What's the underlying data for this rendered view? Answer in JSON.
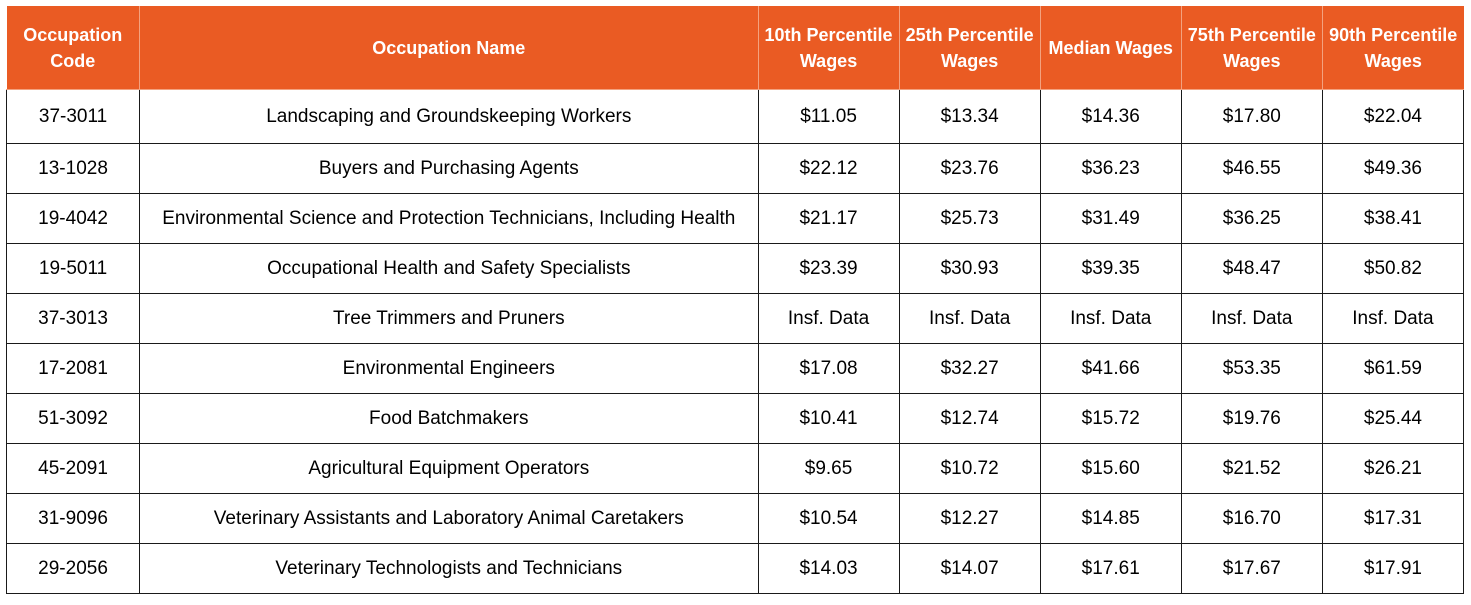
{
  "table": {
    "headers": [
      "Occupation Code",
      "Occupation Name",
      "10th Percentile Wages",
      "25th Percentile Wages",
      "Median Wages",
      "75th Percentile Wages",
      "90th Percentile Wages"
    ],
    "rows": [
      [
        "37-3011",
        "Landscaping and Groundskeeping Workers",
        "$11.05",
        "$13.34",
        "$14.36",
        "$17.80",
        "$22.04"
      ],
      [
        "13-1028",
        "Buyers and Purchasing Agents",
        "$22.12",
        "$23.76",
        "$36.23",
        "$46.55",
        "$49.36"
      ],
      [
        "19-4042",
        "Environmental Science and Protection Technicians, Including Health",
        "$21.17",
        "$25.73",
        "$31.49",
        "$36.25",
        "$38.41"
      ],
      [
        "19-5011",
        "Occupational Health and Safety Specialists",
        "$23.39",
        "$30.93",
        "$39.35",
        "$48.47",
        "$50.82"
      ],
      [
        "37-3013",
        "Tree Trimmers and Pruners",
        "Insf. Data",
        "Insf. Data",
        "Insf. Data",
        "Insf. Data",
        "Insf. Data"
      ],
      [
        "17-2081",
        "Environmental Engineers",
        "$17.08",
        "$32.27",
        "$41.66",
        "$53.35",
        "$61.59"
      ],
      [
        "51-3092",
        "Food Batchmakers",
        "$10.41",
        "$12.74",
        "$15.72",
        "$19.76",
        "$25.44"
      ],
      [
        "45-2091",
        "Agricultural Equipment Operators",
        "$9.65",
        "$10.72",
        "$15.60",
        "$21.52",
        "$26.21"
      ],
      [
        "31-9096",
        "Veterinary Assistants and Laboratory Animal Caretakers",
        "$10.54",
        "$12.27",
        "$14.85",
        "$16.70",
        "$17.31"
      ],
      [
        "29-2056",
        "Veterinary Technologists and Technicians",
        "$14.03",
        "$14.07",
        "$17.61",
        "$17.67",
        "$17.91"
      ]
    ]
  },
  "colors": {
    "header_background": "#ea5b23",
    "header_text": "#ffffff",
    "border": "#1a1a1a"
  }
}
